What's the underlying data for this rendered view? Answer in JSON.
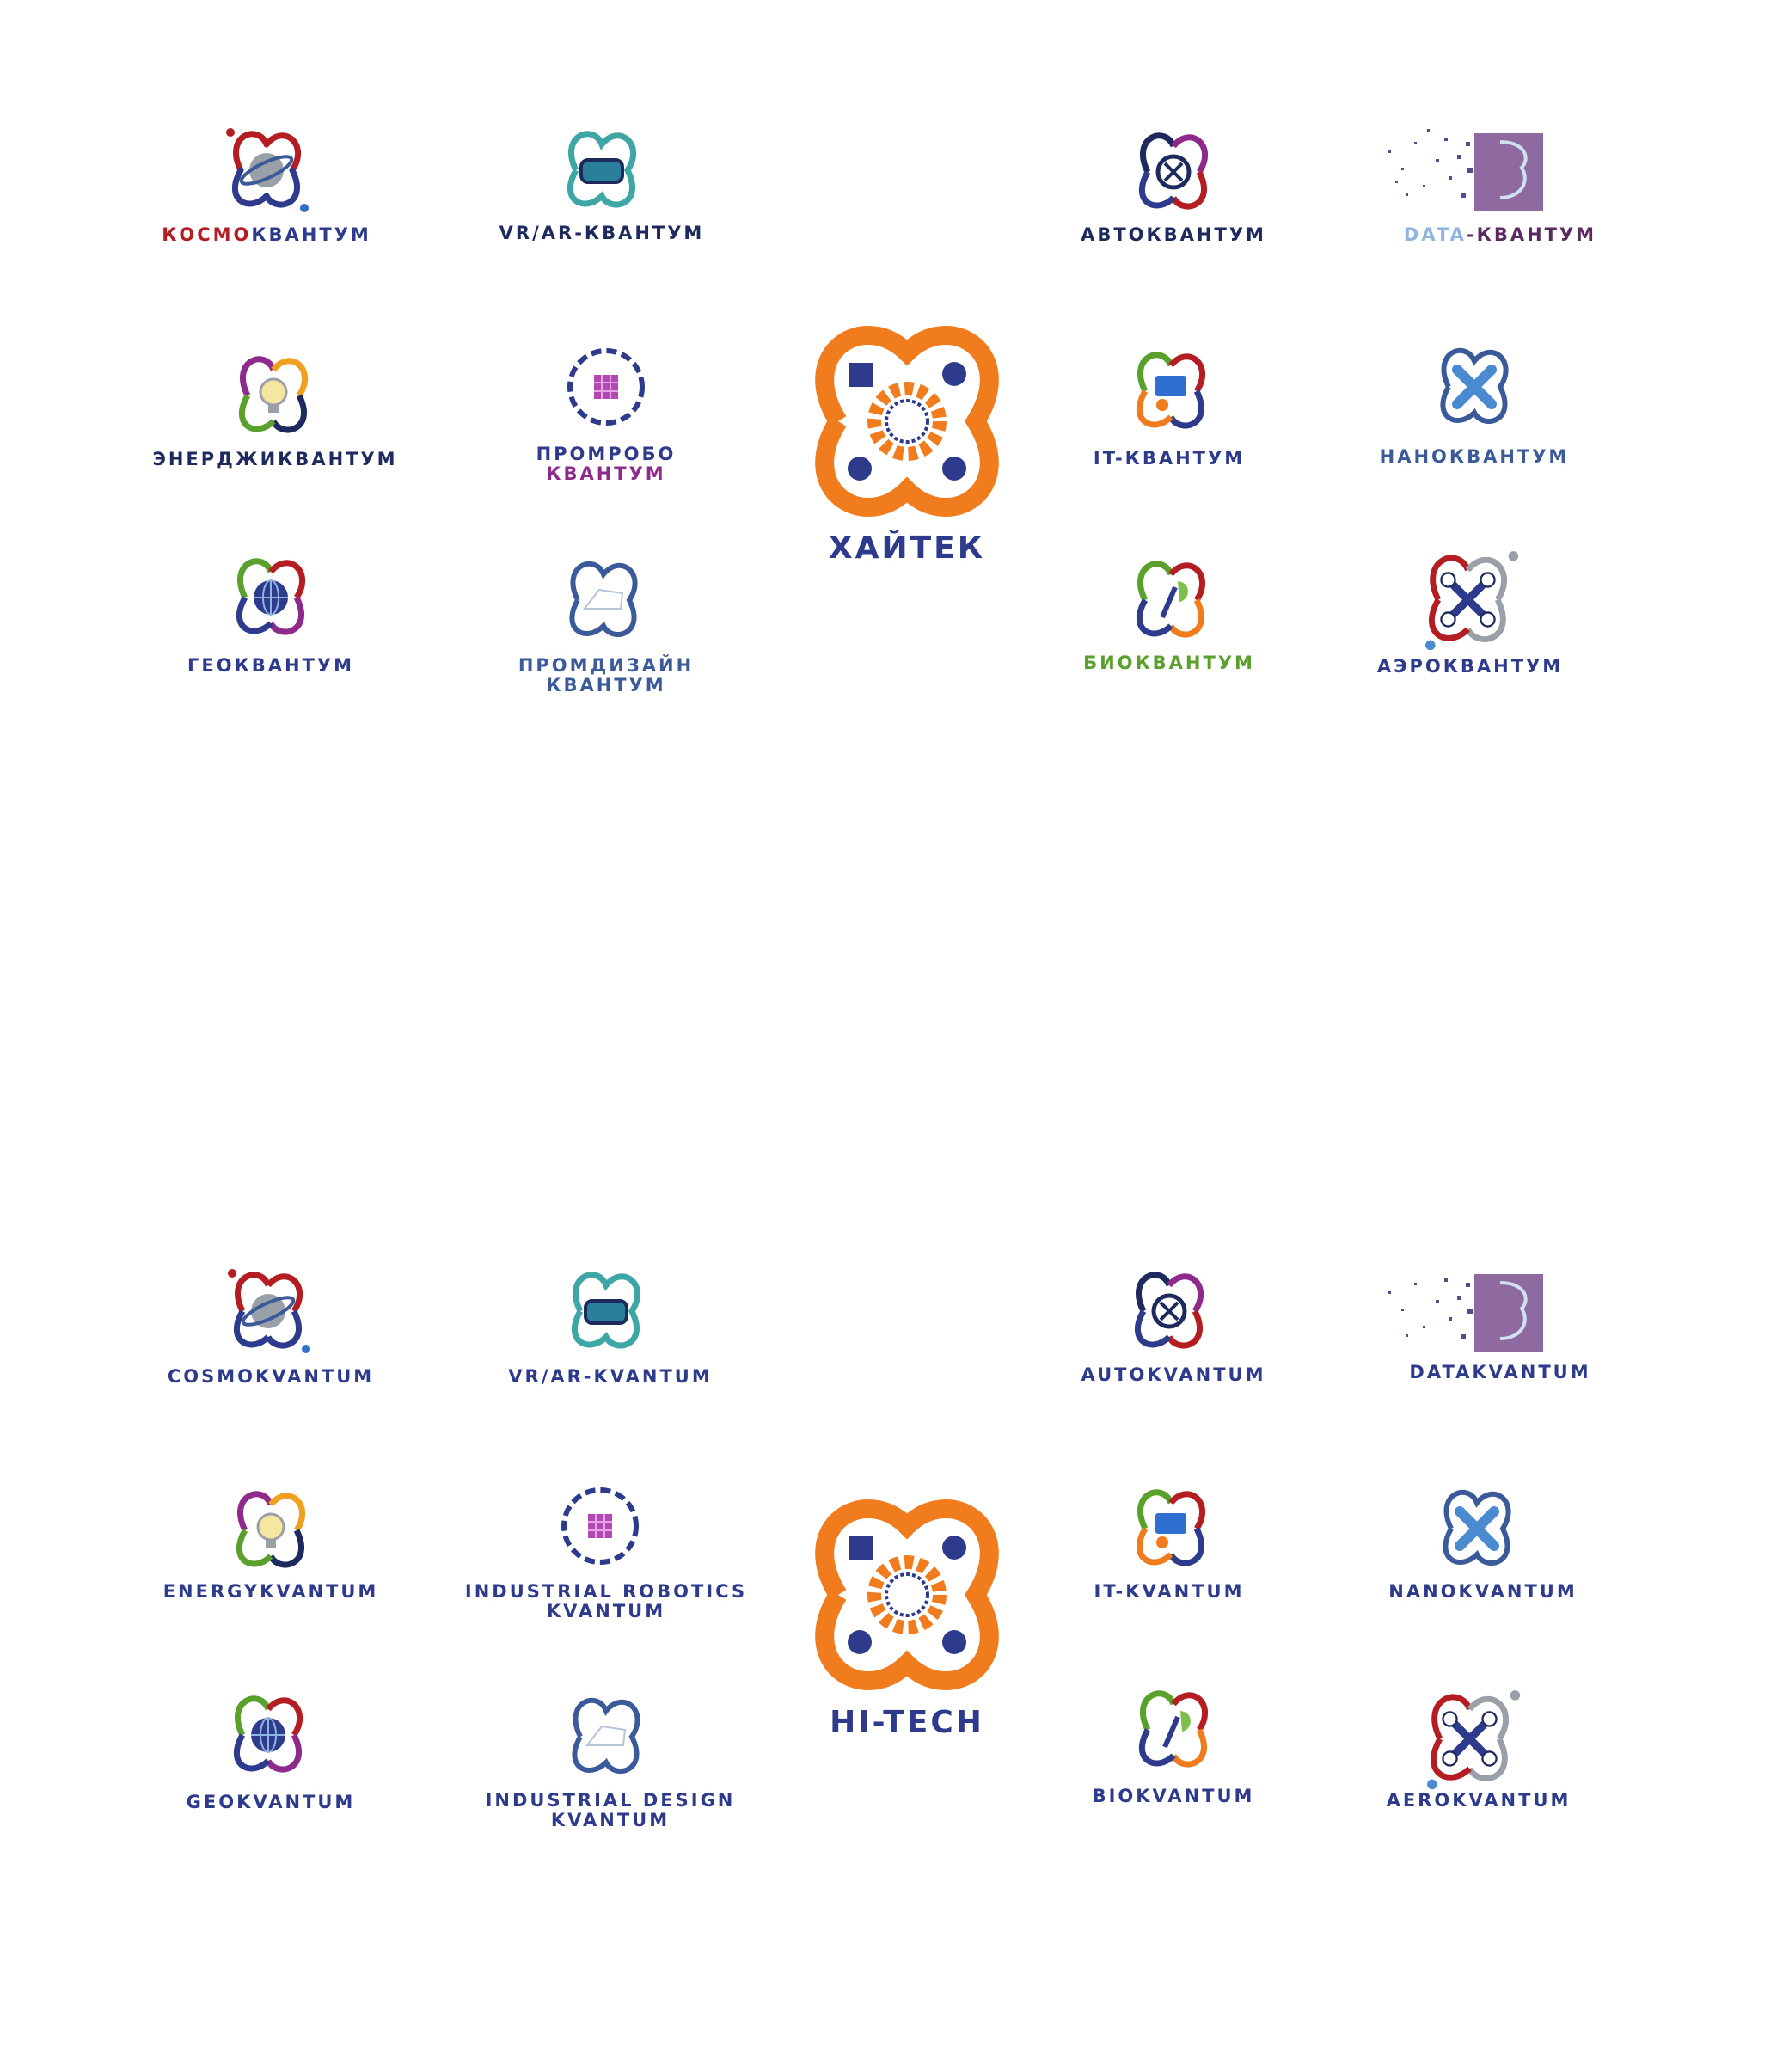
{
  "colors": {
    "navy": "#1e2a5e",
    "blue": "#2e3a8c",
    "steel": "#3a5a9a",
    "orange": "#f07c1e",
    "red": "#b41e23",
    "purple": "#8e2a8c",
    "green": "#5aa02c",
    "lightblue": "#8fb4e0",
    "teal": "#3fa6a6"
  },
  "ru": {
    "hub": "ХАЙТЕК",
    "kosmo": {
      "part1": "КОСМО",
      "part2": "КВАНТУМ"
    },
    "vrar": "VR/AR-КВАНТУМ",
    "auto": "АВТОКВАНТУМ",
    "data": {
      "part1": "DATA",
      "part2": "-КВАНТУМ"
    },
    "energy": "ЭНЕРДЖИКВАНТУМ",
    "promrobo": {
      "line1": "ПРОМРОБО",
      "line2": "КВАНТУМ"
    },
    "it": "IT-КВАНТУМ",
    "nano": "НАНОКВАНТУМ",
    "geo": "ГЕОКВАНТУМ",
    "promdesign": {
      "line1": "ПРОМДИЗАЙН",
      "line2": "КВАНТУМ"
    },
    "bio": "БИОКВАНТУМ",
    "aero": "АЭРОКВАНТУМ"
  },
  "en": {
    "hub": "HI-TECH",
    "kosmo": "COSMOKVANTUM",
    "vrar": "VR/AR-KVANTUM",
    "auto": "AUTOKVANTUM",
    "data": "DATAKVANTUM",
    "energy": "ENERGYKVANTUM",
    "robotics": {
      "line1": "INDUSTRIAL ROBOTICS",
      "line2": "KVANTUM"
    },
    "it": "IT-KVANTUM",
    "nano": "NANOKVANTUM",
    "geo": "GEOKVANTUM",
    "design": {
      "line1": "INDUSTRIAL DESIGN",
      "line2": "KVANTUM"
    },
    "bio": "BIOKVANTUM",
    "aero": "AEROKVANTUM"
  }
}
